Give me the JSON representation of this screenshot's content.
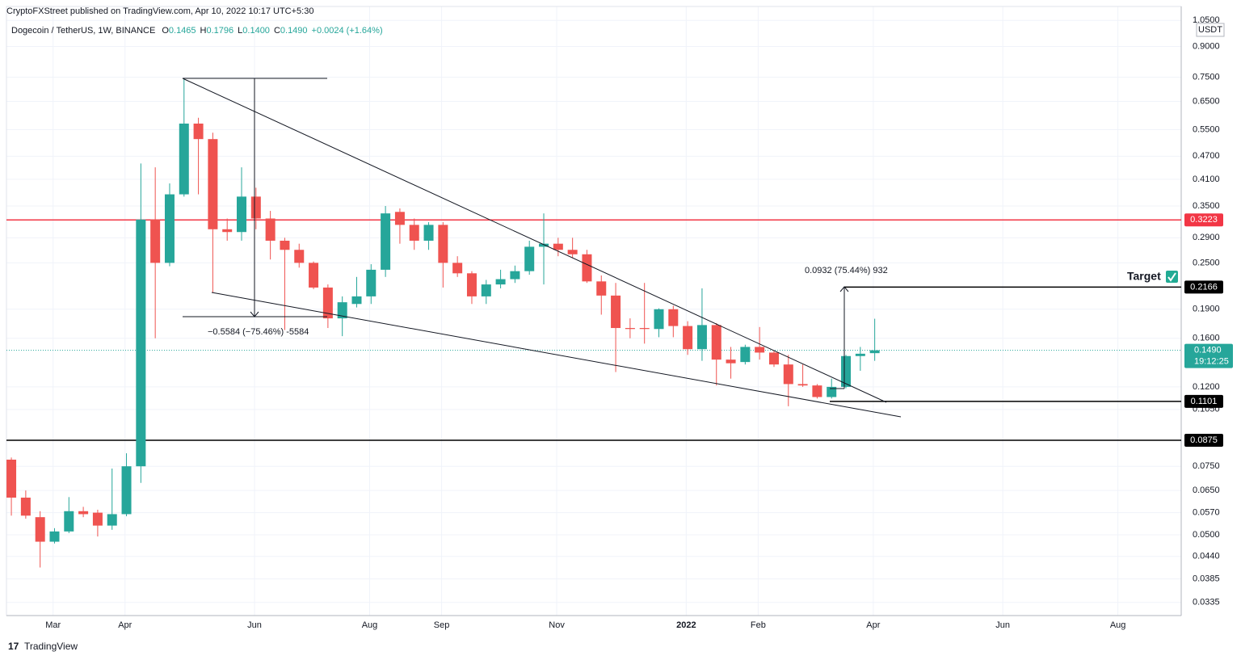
{
  "header": {
    "publisher": "CryptoFXStreet published on TradingView.com, Apr 10, 2022 10:17 UTC+5:30",
    "symbol": "Dogecoin / TetherUS, 1W, BINANCE",
    "ohlc": [
      {
        "key": "O",
        "text": "0.1465"
      },
      {
        "key": "H",
        "text": "0.1796"
      },
      {
        "key": "L",
        "text": "0.1400"
      },
      {
        "key": "C",
        "text": "0.1490"
      }
    ],
    "change": "+0.0024 (+1.64%)"
  },
  "footer": "TradingView",
  "chart_data": {
    "type": "candlestick",
    "log_scale": true,
    "grid": true,
    "currency": "USDT",
    "up_color": "#26a69a",
    "down_color": "#ef5350",
    "candles": {
      "open": [
        0.078,
        0.0623,
        0.0555,
        0.048,
        0.051,
        0.0575,
        0.057,
        0.0528,
        0.0565,
        0.075,
        0.323,
        0.25,
        0.375,
        0.57,
        0.52,
        0.305,
        0.3,
        0.37,
        0.325,
        0.285,
        0.27,
        0.25,
        0.216,
        0.18,
        0.196,
        0.205,
        0.24,
        0.338,
        0.313,
        0.285,
        0.313,
        0.25,
        0.235,
        0.205,
        0.22,
        0.227,
        0.238,
        0.275,
        0.28,
        0.27,
        0.263,
        0.224,
        0.206,
        0.17,
        0.17,
        0.169,
        0.19,
        0.172,
        0.15,
        0.173,
        0.141,
        0.139,
        0.152,
        0.147,
        0.137,
        0.122,
        0.121,
        0.113,
        0.12,
        0.144,
        0.1465
      ],
      "high": [
        0.079,
        0.065,
        0.0575,
        0.052,
        0.0625,
        0.059,
        0.058,
        0.074,
        0.081,
        0.45,
        0.44,
        0.4,
        0.74,
        0.59,
        0.54,
        0.325,
        0.44,
        0.39,
        0.34,
        0.29,
        0.28,
        0.252,
        0.22,
        0.205,
        0.23,
        0.248,
        0.35,
        0.345,
        0.325,
        0.318,
        0.318,
        0.26,
        0.238,
        0.226,
        0.24,
        0.246,
        0.285,
        0.335,
        0.29,
        0.29,
        0.27,
        0.232,
        0.222,
        0.18,
        0.222,
        0.191,
        0.194,
        0.177,
        0.215,
        0.175,
        0.152,
        0.154,
        0.171,
        0.149,
        0.145,
        0.137,
        0.122,
        0.126,
        0.145,
        0.152,
        0.1796
      ],
      "low": [
        0.056,
        0.055,
        0.0412,
        0.0475,
        0.0505,
        0.0555,
        0.0495,
        0.0515,
        0.0558,
        0.068,
        0.16,
        0.245,
        0.37,
        0.375,
        0.21,
        0.285,
        0.285,
        0.305,
        0.255,
        0.168,
        0.243,
        0.214,
        0.17,
        0.162,
        0.192,
        0.196,
        0.23,
        0.28,
        0.27,
        0.27,
        0.216,
        0.23,
        0.196,
        0.196,
        0.215,
        0.222,
        0.233,
        0.22,
        0.26,
        0.258,
        0.222,
        0.184,
        0.131,
        0.16,
        0.155,
        0.161,
        0.161,
        0.145,
        0.14,
        0.121,
        0.126,
        0.137,
        0.141,
        0.135,
        0.107,
        0.12,
        0.112,
        0.112,
        0.119,
        0.132,
        0.14
      ],
      "close": [
        0.0623,
        0.056,
        0.048,
        0.051,
        0.0575,
        0.0565,
        0.0528,
        0.0565,
        0.075,
        0.323,
        0.25,
        0.375,
        0.57,
        0.52,
        0.305,
        0.3,
        0.37,
        0.325,
        0.285,
        0.27,
        0.25,
        0.216,
        0.18,
        0.198,
        0.205,
        0.24,
        0.335,
        0.313,
        0.285,
        0.313,
        0.25,
        0.235,
        0.205,
        0.22,
        0.227,
        0.238,
        0.275,
        0.28,
        0.27,
        0.263,
        0.224,
        0.206,
        0.17,
        0.169,
        0.169,
        0.19,
        0.172,
        0.15,
        0.173,
        0.141,
        0.138,
        0.152,
        0.147,
        0.137,
        0.122,
        0.121,
        0.113,
        0.12,
        0.144,
        0.146,
        0.149
      ]
    },
    "xlim": [
      -0.34,
      81.3
    ],
    "xticks": [
      {
        "value": 2.9,
        "label": "Mar"
      },
      {
        "value": 7.9,
        "label": "Apr"
      },
      {
        "value": 16.9,
        "label": "Jun"
      },
      {
        "value": 24.9,
        "label": "Aug"
      },
      {
        "value": 29.9,
        "label": "Sep"
      },
      {
        "value": 37.9,
        "label": "Nov"
      },
      {
        "value": 46.9,
        "label": "2022"
      },
      {
        "value": 51.9,
        "label": "Feb"
      },
      {
        "value": 59.9,
        "label": "Apr"
      },
      {
        "value": 68.9,
        "label": "Jun"
      },
      {
        "value": 76.9,
        "label": "Aug"
      }
    ],
    "ylim": [
      0.031,
      1.14
    ],
    "yticks": [
      {
        "value": 1.05,
        "label": "1.0500"
      },
      {
        "value": 0.9,
        "label": "0.9000"
      },
      {
        "value": 0.75,
        "label": "0.7500"
      },
      {
        "value": 0.65,
        "label": "0.6500"
      },
      {
        "value": 0.55,
        "label": "0.5500"
      },
      {
        "value": 0.47,
        "label": "0.4700"
      },
      {
        "value": 0.41,
        "label": "0.4100"
      },
      {
        "value": 0.35,
        "label": "0.3500"
      },
      {
        "value": 0.29,
        "label": "0.2900"
      },
      {
        "value": 0.25,
        "label": "0.2500"
      },
      {
        "value": 0.19,
        "label": "0.1900"
      },
      {
        "value": 0.16,
        "label": "0.1600"
      },
      {
        "value": 0.12,
        "label": "0.1200"
      },
      {
        "value": 0.105,
        "label": "0.1050"
      },
      {
        "value": 0.075,
        "label": "0.0750"
      },
      {
        "value": 0.065,
        "label": "0.0650"
      },
      {
        "value": 0.057,
        "label": "0.0570"
      },
      {
        "value": 0.05,
        "label": "0.0500"
      },
      {
        "value": 0.044,
        "label": "0.0440"
      },
      {
        "value": 0.0385,
        "label": "0.0385"
      },
      {
        "value": 0.0335,
        "label": "0.0335"
      }
    ],
    "levels": [
      {
        "value": 0.3223,
        "color": "#f23645"
      },
      {
        "value": 0.2166,
        "color": "#000000"
      },
      {
        "value": 0.1101,
        "color": "#000000"
      },
      {
        "value": 0.0875,
        "color": "#000000"
      }
    ],
    "last_price": {
      "value": 0.149,
      "label": "0.1490",
      "countdown": "19:12:25",
      "color": "#26a69a"
    },
    "annotations": {
      "drop": "−0.5584 (−75.46%) -5584",
      "rise": "0.0932 (75.44%) 932",
      "target": "Target"
    }
  }
}
